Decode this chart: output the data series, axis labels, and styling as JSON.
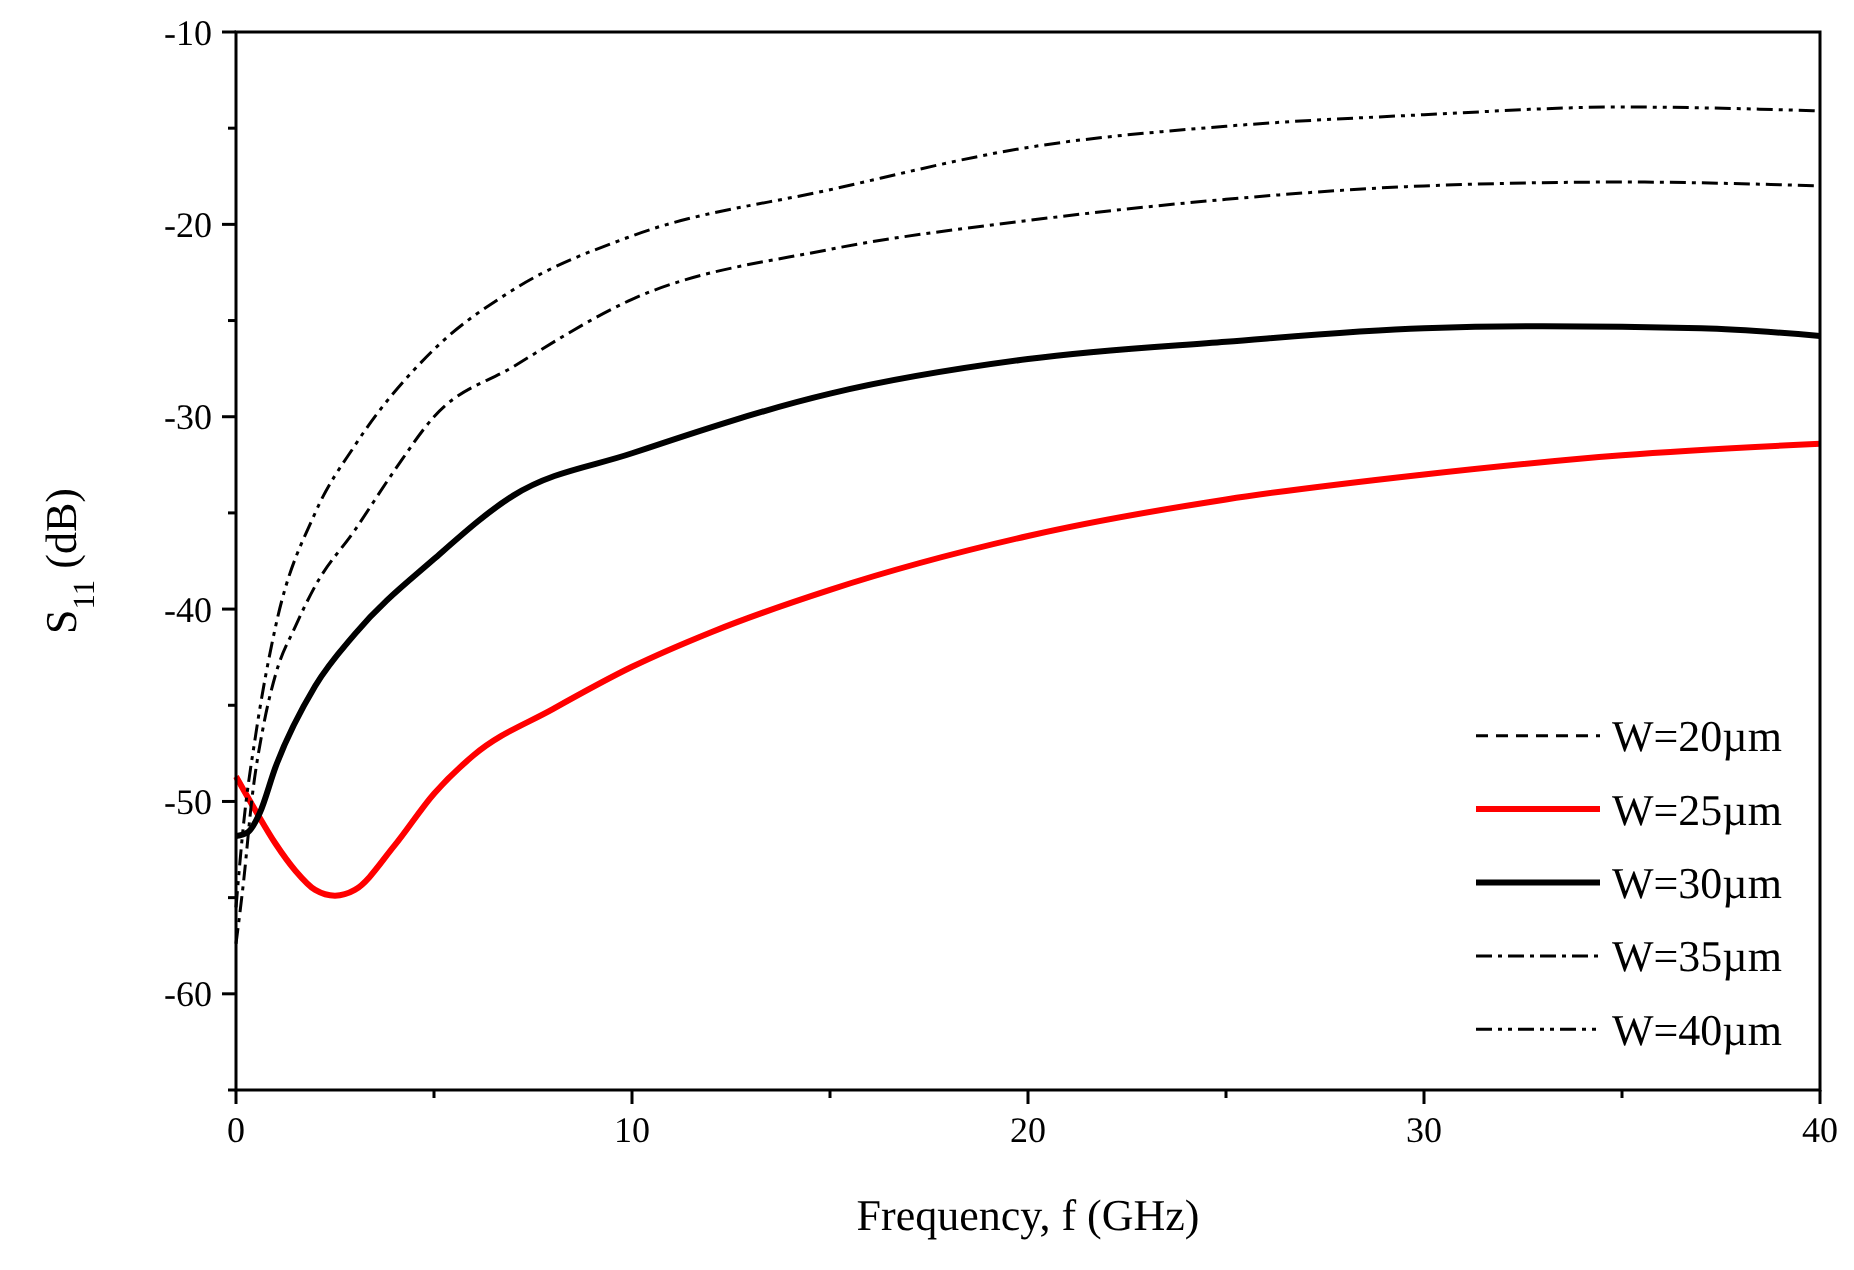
{
  "chart_data": {
    "type": "line",
    "xlabel": "Frequency, f (GHz)",
    "ylabel": "S$_{11}$ (dB)",
    "xlim": [
      0,
      40
    ],
    "xticks": [
      0,
      {
        "value": 5,
        "label": null
      },
      10,
      {
        "value": 15,
        "label": null
      },
      20,
      {
        "value": 25,
        "label": null
      },
      30,
      {
        "value": 35,
        "label": null
      },
      40
    ],
    "ylim": [
      -65,
      -10
    ],
    "yticks": [
      {
        "value": -65,
        "label": null
      },
      -60,
      {
        "value": -55,
        "label": null
      },
      -50,
      {
        "value": -45,
        "label": null
      },
      -40,
      {
        "value": -35,
        "label": null
      },
      -30,
      {
        "value": -25,
        "label": null
      },
      -20,
      {
        "value": -15,
        "label": null
      },
      -10
    ],
    "grid": false,
    "legend": "bottom right",
    "marker": "none",
    "series": [
      {
        "name": "W=20µm",
        "color": "#000000",
        "line_style": "dashed"
      },
      {
        "name": "W=25µm",
        "color": "#ff0000",
        "line_style": "solid",
        "x": [
          0,
          0.5,
          1,
          1.5,
          2,
          2.5,
          3,
          4,
          5,
          6,
          8,
          10,
          12,
          15,
          20,
          25,
          30,
          35,
          40
        ],
        "values": [
          -48.7,
          -50.5,
          -52.2,
          -53.6,
          -54.6,
          -54.9,
          -54.6,
          -52.3,
          -49.6,
          -47.6,
          -45.2,
          -43.0,
          -41.2,
          -39.0,
          -36.2,
          -34.3,
          -33.0,
          -32.0,
          -31.4
        ]
      },
      {
        "name": "W=30µm",
        "color": "#000000",
        "line_style": "solid",
        "x": [
          0,
          0.3,
          0.6,
          1,
          2,
          3,
          5,
          7,
          10,
          15,
          20,
          25,
          30,
          33,
          37,
          40
        ],
        "values": [
          -51.8,
          -51.6,
          -50.6,
          -48.2,
          -44.0,
          -41.3,
          -37.4,
          -34.1,
          -31.9,
          -28.8,
          -27.0,
          -26.1,
          -25.4,
          -25.3,
          -25.4,
          -25.8
        ]
      },
      {
        "name": "W=35µm",
        "color": "#000000",
        "line_style": "dashdot",
        "x": [
          0,
          0.2,
          0.4,
          0.7,
          1,
          1.5,
          2,
          3,
          4,
          5,
          7,
          10,
          15,
          20,
          25,
          30,
          35,
          40
        ],
        "values": [
          -57.4,
          -54.0,
          -49.9,
          -46.0,
          -43.4,
          -40.9,
          -38.8,
          -35.9,
          -32.8,
          -30.0,
          -27.4,
          -23.9,
          -21.3,
          -19.8,
          -18.7,
          -18.0,
          -17.8,
          -18.0
        ]
      },
      {
        "name": "W=40µm",
        "color": "#000000",
        "line_style": "dashdotdot",
        "x": [
          0,
          0.2,
          0.5,
          1,
          2,
          3,
          5,
          7,
          10,
          15,
          20,
          25,
          30,
          35,
          40
        ],
        "values": [
          -55.5,
          -51.0,
          -46.5,
          -40.9,
          -35.0,
          -31.5,
          -26.5,
          -23.4,
          -20.6,
          -18.2,
          -16.0,
          -14.9,
          -14.3,
          -13.9,
          -14.1
        ]
      }
    ]
  }
}
